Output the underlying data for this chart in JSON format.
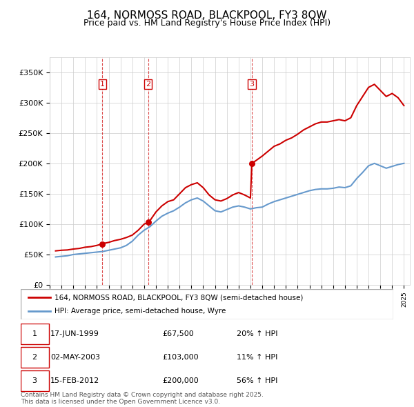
{
  "title": "164, NORMOSS ROAD, BLACKPOOL, FY3 8QW",
  "subtitle": "Price paid vs. HM Land Registry's House Price Index (HPI)",
  "red_label": "164, NORMOSS ROAD, BLACKPOOL, FY3 8QW (semi-detached house)",
  "blue_label": "HPI: Average price, semi-detached house, Wyre",
  "footer": "Contains HM Land Registry data © Crown copyright and database right 2025.\nThis data is licensed under the Open Government Licence v3.0.",
  "transactions": [
    {
      "num": 1,
      "date": "17-JUN-1999",
      "price": 67500,
      "pct": "20%",
      "dir": "↑"
    },
    {
      "num": 2,
      "date": "02-MAY-2003",
      "price": 103000,
      "pct": "11%",
      "dir": "↑"
    },
    {
      "num": 3,
      "date": "15-FEB-2012",
      "price": 200000,
      "pct": "56%",
      "dir": "↑"
    }
  ],
  "vline_years": [
    1999.46,
    2003.33,
    2012.12
  ],
  "red_color": "#cc0000",
  "blue_color": "#6699cc",
  "vline_color": "#cc0000",
  "ylim": [
    0,
    375000
  ],
  "yticks": [
    0,
    50000,
    100000,
    150000,
    200000,
    250000,
    300000,
    350000
  ],
  "ytick_labels": [
    "£0",
    "£50K",
    "£100K",
    "£150K",
    "£200K",
    "£250K",
    "£300K",
    "£350K"
  ],
  "hpi_data": {
    "years": [
      1995.5,
      1996.0,
      1996.5,
      1997.0,
      1997.5,
      1998.0,
      1998.5,
      1999.0,
      1999.5,
      2000.0,
      2000.5,
      2001.0,
      2001.5,
      2002.0,
      2002.5,
      2003.0,
      2003.5,
      2004.0,
      2004.5,
      2005.0,
      2005.5,
      2006.0,
      2006.5,
      2007.0,
      2007.5,
      2008.0,
      2008.5,
      2009.0,
      2009.5,
      2010.0,
      2010.5,
      2011.0,
      2011.5,
      2012.0,
      2012.5,
      2013.0,
      2013.5,
      2014.0,
      2014.5,
      2015.0,
      2015.5,
      2016.0,
      2016.5,
      2017.0,
      2017.5,
      2018.0,
      2018.5,
      2019.0,
      2019.5,
      2020.0,
      2020.5,
      2021.0,
      2021.5,
      2022.0,
      2022.5,
      2023.0,
      2023.5,
      2024.0,
      2024.5,
      2025.0
    ],
    "values": [
      46000,
      47000,
      48000,
      50000,
      51000,
      52000,
      53000,
      54000,
      55000,
      57000,
      59000,
      61000,
      65000,
      72000,
      82000,
      90000,
      96000,
      105000,
      113000,
      118000,
      122000,
      128000,
      135000,
      140000,
      143000,
      138000,
      130000,
      122000,
      120000,
      124000,
      128000,
      130000,
      128000,
      125000,
      127000,
      128000,
      133000,
      137000,
      140000,
      143000,
      146000,
      149000,
      152000,
      155000,
      157000,
      158000,
      158000,
      159000,
      161000,
      160000,
      163000,
      175000,
      185000,
      196000,
      200000,
      196000,
      192000,
      195000,
      198000,
      200000
    ]
  },
  "red_data": {
    "years": [
      1995.5,
      1996.0,
      1996.5,
      1997.0,
      1997.5,
      1998.0,
      1998.5,
      1999.0,
      1999.46,
      1999.5,
      2000.0,
      2000.5,
      2001.0,
      2001.5,
      2002.0,
      2002.5,
      2003.0,
      2003.33,
      2003.5,
      2004.0,
      2004.5,
      2005.0,
      2005.5,
      2006.0,
      2006.5,
      2007.0,
      2007.5,
      2008.0,
      2008.5,
      2009.0,
      2009.5,
      2010.0,
      2010.5,
      2011.0,
      2011.5,
      2012.0,
      2012.12,
      2012.5,
      2013.0,
      2013.5,
      2014.0,
      2014.5,
      2015.0,
      2015.5,
      2016.0,
      2016.5,
      2017.0,
      2017.5,
      2018.0,
      2018.5,
      2019.0,
      2019.5,
      2020.0,
      2020.5,
      2021.0,
      2021.5,
      2022.0,
      2022.5,
      2023.0,
      2023.5,
      2024.0,
      2024.5,
      2025.0
    ],
    "values": [
      56000,
      57000,
      57500,
      59000,
      60000,
      62000,
      63000,
      65000,
      67500,
      68000,
      70000,
      73000,
      75000,
      78000,
      82000,
      90000,
      100000,
      103000,
      106000,
      120000,
      130000,
      137000,
      140000,
      150000,
      160000,
      165000,
      168000,
      160000,
      148000,
      140000,
      138000,
      142000,
      148000,
      152000,
      148000,
      143000,
      200000,
      205000,
      212000,
      220000,
      228000,
      232000,
      238000,
      242000,
      248000,
      255000,
      260000,
      265000,
      268000,
      268000,
      270000,
      272000,
      270000,
      275000,
      295000,
      310000,
      325000,
      330000,
      320000,
      310000,
      315000,
      308000,
      295000
    ]
  }
}
